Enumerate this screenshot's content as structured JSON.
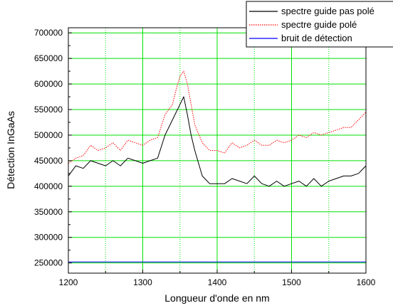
{
  "chart_data": {
    "type": "line",
    "title": "",
    "xlabel": "Longueur d'onde en nm",
    "ylabel": "Détection InGaAs",
    "xlim": [
      1200,
      1600
    ],
    "ylim": [
      230000,
      710000
    ],
    "x_ticks": [
      1200,
      1300,
      1400,
      1500,
      1600
    ],
    "x_tick_labels": [
      "1200",
      "1300",
      "1400",
      "1500",
      "1600"
    ],
    "y_ticks": [
      250000,
      300000,
      350000,
      400000,
      450000,
      500000,
      550000,
      600000,
      650000,
      700000
    ],
    "y_tick_labels": [
      "250000",
      "300000",
      "350000",
      "400000",
      "450000",
      "500000",
      "550000",
      "600000",
      "650000",
      "700000"
    ],
    "grid": true,
    "grid_major_color": "#00e000",
    "legend_position": "top-right",
    "series": [
      {
        "name": "spectre guide pas polé",
        "color": "#000000",
        "style": "solid",
        "x": [
          1200,
          1210,
          1220,
          1230,
          1240,
          1250,
          1260,
          1270,
          1280,
          1290,
          1300,
          1310,
          1320,
          1330,
          1340,
          1345,
          1350,
          1355,
          1360,
          1365,
          1370,
          1380,
          1390,
          1400,
          1410,
          1420,
          1430,
          1440,
          1450,
          1460,
          1470,
          1480,
          1490,
          1500,
          1510,
          1520,
          1530,
          1540,
          1550,
          1560,
          1570,
          1580,
          1590,
          1600
        ],
        "values": [
          420000,
          440000,
          435000,
          450000,
          445000,
          440000,
          450000,
          440000,
          455000,
          450000,
          445000,
          450000,
          455000,
          500000,
          530000,
          545000,
          560000,
          575000,
          540000,
          500000,
          470000,
          420000,
          405000,
          405000,
          405000,
          415000,
          410000,
          405000,
          420000,
          405000,
          400000,
          410000,
          400000,
          405000,
          410000,
          400000,
          415000,
          400000,
          410000,
          415000,
          420000,
          420000,
          425000,
          440000
        ]
      },
      {
        "name": "spectre guide polé",
        "color": "#ff0000",
        "style": "dotted",
        "x": [
          1200,
          1210,
          1220,
          1230,
          1240,
          1250,
          1260,
          1270,
          1280,
          1290,
          1300,
          1310,
          1320,
          1330,
          1340,
          1345,
          1350,
          1355,
          1360,
          1365,
          1370,
          1380,
          1390,
          1400,
          1410,
          1420,
          1430,
          1440,
          1450,
          1460,
          1470,
          1480,
          1490,
          1500,
          1510,
          1520,
          1530,
          1540,
          1550,
          1560,
          1570,
          1580,
          1590,
          1600
        ],
        "values": [
          445000,
          455000,
          460000,
          480000,
          470000,
          475000,
          485000,
          470000,
          490000,
          485000,
          480000,
          490000,
          495000,
          540000,
          560000,
          590000,
          615000,
          625000,
          600000,
          560000,
          520000,
          485000,
          470000,
          470000,
          465000,
          485000,
          475000,
          480000,
          490000,
          480000,
          480000,
          490000,
          485000,
          490000,
          500000,
          495000,
          505000,
          500000,
          505000,
          510000,
          515000,
          515000,
          530000,
          545000
        ]
      },
      {
        "name": " bruit  de détection",
        "color": "#0000ff",
        "style": "solid",
        "x": [
          1200,
          1600
        ],
        "values": [
          252000,
          252000
        ]
      }
    ]
  }
}
